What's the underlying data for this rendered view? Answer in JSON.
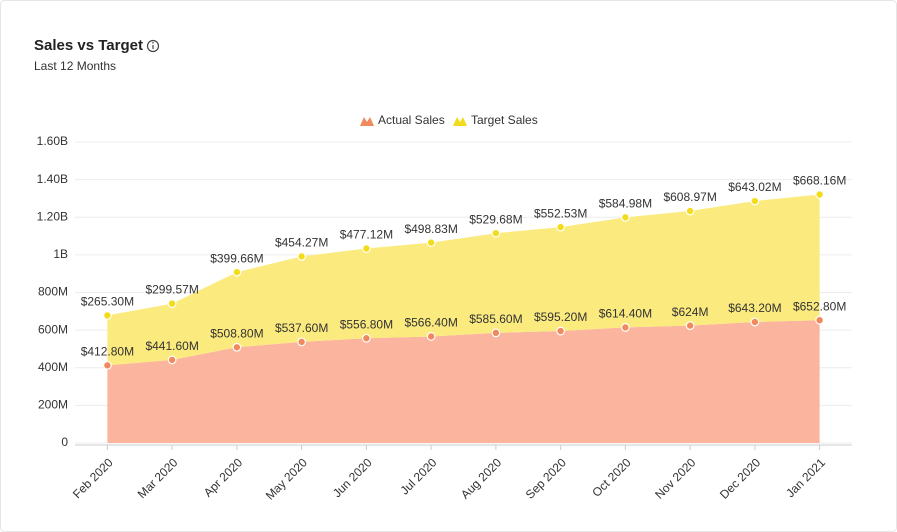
{
  "chart_data": {
    "type": "area",
    "stacked": true,
    "title": "Sales vs Target",
    "subtitle": "Last 12 Months",
    "categories": [
      "Feb 2020",
      "Mar 2020",
      "Apr 2020",
      "May 2020",
      "Jun 2020",
      "Jul 2020",
      "Aug 2020",
      "Sep 2020",
      "Oct 2020",
      "Nov 2020",
      "Dec 2020",
      "Jan 2021"
    ],
    "series": [
      {
        "name": "Actual Sales",
        "color": "#f08a5d",
        "area_color": "#fbb49e",
        "values": [
          412800000,
          441600000,
          508800000,
          537600000,
          556800000,
          566400000,
          585600000,
          595200000,
          614400000,
          624000000,
          643200000,
          652800000
        ],
        "value_labels": [
          "$412.80M",
          "$441.60M",
          "$508.80M",
          "$537.60M",
          "$556.80M",
          "$566.40M",
          "$585.60M",
          "$595.20M",
          "$614.40M",
          "$624M",
          "$643.20M",
          "$652.80M"
        ]
      },
      {
        "name": "Target Sales",
        "color": "#f2dc1c",
        "area_color": "#fbea7e",
        "values": [
          265300000,
          299570000,
          399660000,
          454270000,
          477120000,
          498830000,
          529680000,
          552530000,
          584980000,
          608970000,
          643020000,
          668160000
        ],
        "value_labels": [
          "$265.30M",
          "$299.57M",
          "$399.66M",
          "$454.27M",
          "$477.12M",
          "$498.83M",
          "$529.68M",
          "$552.53M",
          "$584.98M",
          "$608.97M",
          "$643.02M",
          "$668.16M"
        ]
      }
    ],
    "ylim": [
      0,
      1600000000
    ],
    "yticks": [
      0,
      {
        "value": 200000000,
        "label": "200M"
      },
      {
        "value": 400000000,
        "label": "400M"
      },
      {
        "value": 600000000,
        "label": "600M"
      },
      {
        "value": 800000000,
        "label": "800M"
      },
      {
        "value": 1000000000,
        "label": "1B"
      },
      {
        "value": 1200000000,
        "label": "1.20B"
      },
      {
        "value": 1400000000,
        "label": "1.40B"
      },
      {
        "value": 1600000000,
        "label": "1.60B"
      }
    ],
    "grid": true,
    "legend": "top"
  }
}
